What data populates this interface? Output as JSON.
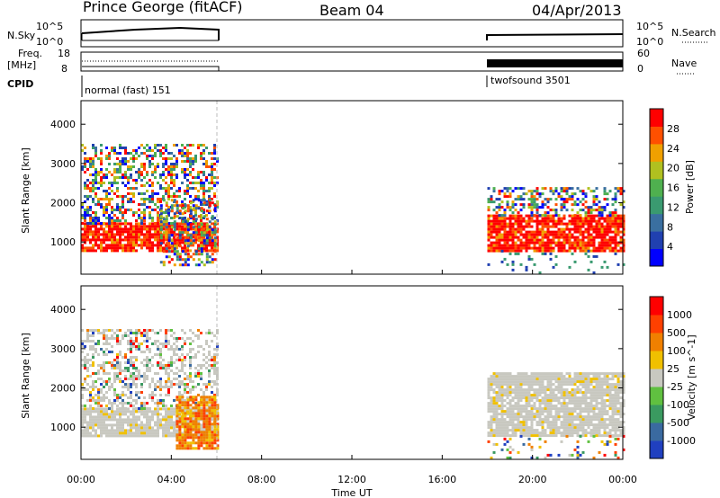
{
  "header": {
    "station": "Prince George (fitACF)",
    "beam": "Beam 04",
    "date": "04/Apr/2013"
  },
  "top_panels": {
    "nsky_label": "N.Sky",
    "nsky_ticks": [
      "10^5",
      "10^0"
    ],
    "nsearch_label": "N.Search",
    "freq_label_1": "Freq.",
    "freq_label_2": "[MHz]",
    "freq_ticks": [
      "18",
      "8"
    ],
    "nave_label": "Nave",
    "nave_ticks": [
      "60",
      "0"
    ],
    "cpid_label": "CPID",
    "cpid_segments": [
      {
        "name": "normal (fast) 151",
        "start_hour": 0,
        "end_hour": 6
      },
      {
        "name": "twofsound 3501",
        "start_hour": 18,
        "end_hour": 24
      }
    ]
  },
  "x_axis": {
    "label": "Time UT",
    "ticks": [
      "00:00",
      "04:00",
      "08:00",
      "12:00",
      "16:00",
      "20:00",
      "00:00"
    ],
    "range_hours": [
      0,
      24
    ]
  },
  "chart_data": [
    {
      "type": "heatmap",
      "title": "",
      "xlabel": "Time UT",
      "ylabel": "Slant Range [km]",
      "xlim_hours": [
        0,
        24
      ],
      "ylim_km": [
        180,
        4600
      ],
      "y_ticks": [
        "4000",
        "3000",
        "2000",
        "1000"
      ],
      "colorbar_label": "Power [dB]",
      "colorbar_ticks": [
        "28",
        "24",
        "20",
        "16",
        "12",
        "8",
        "4"
      ],
      "colorbar_colors": [
        "#0000ff",
        "#2040b0",
        "#3a6fa0",
        "#3a9a70",
        "#4fb04f",
        "#b0c020",
        "#f0a000",
        "#ff5000",
        "#ff0000"
      ],
      "data_gaps_hours": [
        [
          6,
          18
        ]
      ],
      "echo_regions": [
        {
          "t0": 0.0,
          "t1": 6.0,
          "r0": 800,
          "r1": 1500,
          "level": "high"
        },
        {
          "t0": 0.0,
          "t1": 6.0,
          "r0": 1500,
          "r1": 3500,
          "level": "mixed"
        },
        {
          "t0": 3.5,
          "t1": 6.0,
          "r0": 450,
          "r1": 2100,
          "level": "mixed"
        },
        {
          "t0": 18.0,
          "t1": 24.0,
          "r0": 800,
          "r1": 1700,
          "level": "high"
        },
        {
          "t0": 18.0,
          "t1": 24.0,
          "r0": 1700,
          "r1": 2400,
          "level": "mixed"
        },
        {
          "t0": 18.0,
          "t1": 24.0,
          "r0": 200,
          "r1": 800,
          "level": "sparse"
        }
      ]
    },
    {
      "type": "heatmap",
      "title": "",
      "xlabel": "Time UT",
      "ylabel": "Slant Range [km]",
      "xlim_hours": [
        0,
        24
      ],
      "ylim_km": [
        180,
        4600
      ],
      "y_ticks": [
        "4000",
        "3000",
        "2000",
        "1000"
      ],
      "colorbar_label": "Velocity [m s^-1]",
      "colorbar_ticks": [
        "1000",
        "500",
        "100",
        "25",
        "-25",
        "-100",
        "-500",
        "-1000"
      ],
      "colorbar_colors": [
        "#2040c0",
        "#3a6aa0",
        "#3a9a60",
        "#60c040",
        "#c8c8c0",
        "#f0c000",
        "#f08000",
        "#ff4000",
        "#ff0000"
      ],
      "ground_scatter_color": "#c8c8c0",
      "data_gaps_hours": [
        [
          6,
          18
        ]
      ],
      "echo_regions": [
        {
          "t0": 0.0,
          "t1": 6.0,
          "r0": 800,
          "r1": 1500,
          "level": "ground"
        },
        {
          "t0": 0.0,
          "t1": 6.0,
          "r0": 1500,
          "r1": 3500,
          "level": "ground-mixed"
        },
        {
          "t0": 4.2,
          "t1": 6.0,
          "r0": 450,
          "r1": 1800,
          "level": "negative"
        },
        {
          "t0": 18.0,
          "t1": 24.0,
          "r0": 800,
          "r1": 2400,
          "level": "ground"
        },
        {
          "t0": 18.0,
          "t1": 24.0,
          "r0": 200,
          "r1": 800,
          "level": "sparse"
        }
      ]
    }
  ]
}
